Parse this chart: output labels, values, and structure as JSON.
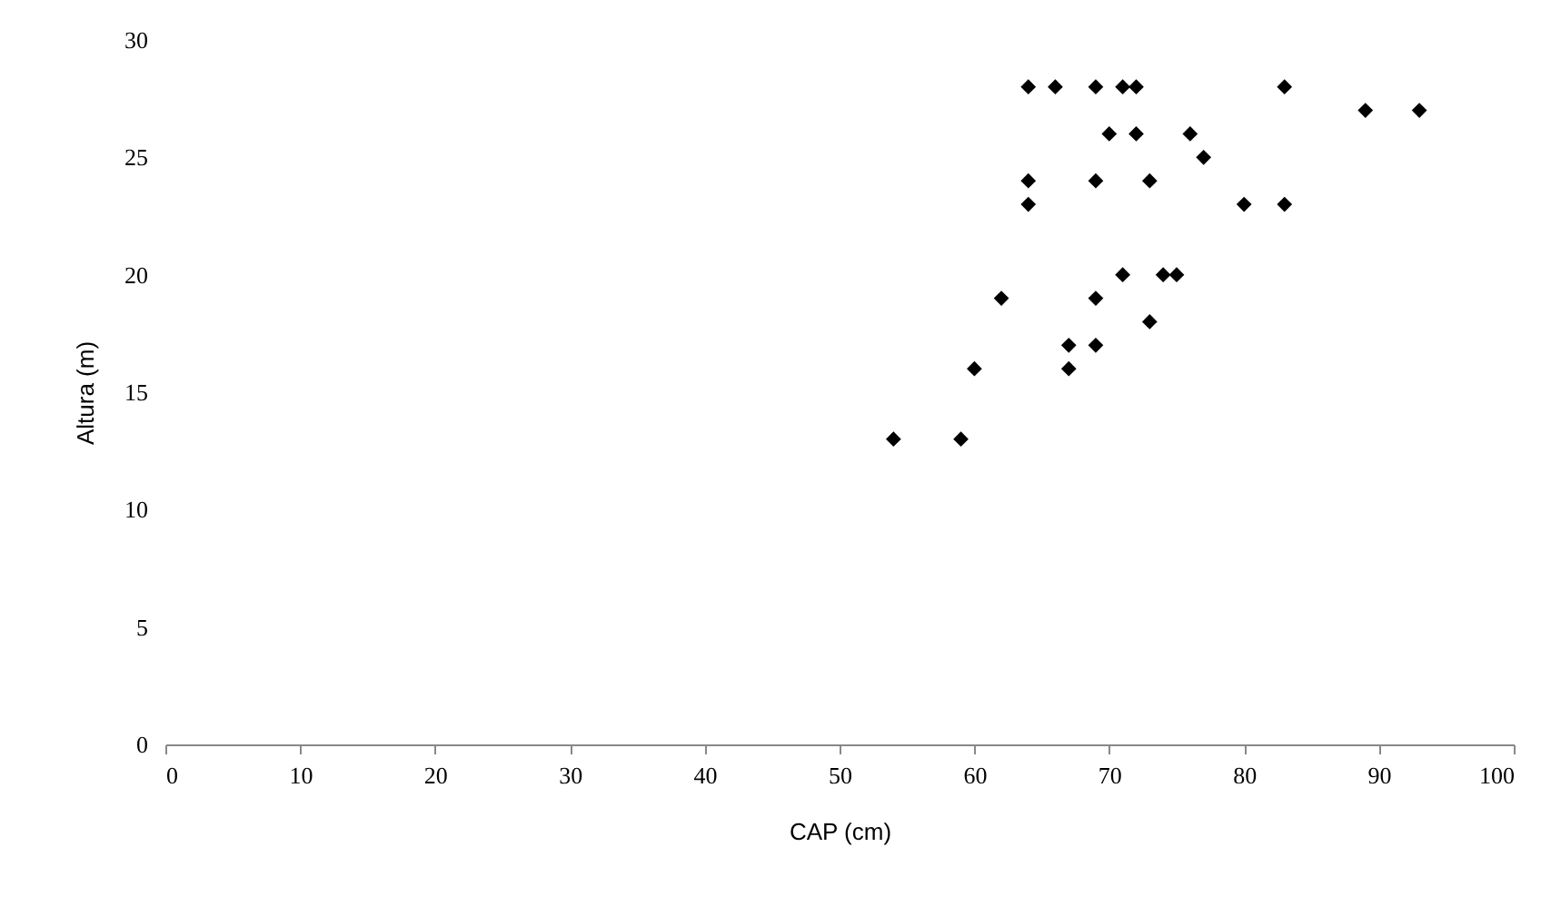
{
  "chart_data": {
    "type": "scatter",
    "xlabel": "CAP (cm)",
    "ylabel": "Altura (m)",
    "series": [
      {
        "color": "#000000",
        "x": [
          54,
          59,
          60,
          62,
          64,
          64,
          64,
          66,
          67,
          67,
          69,
          69,
          69,
          69,
          70,
          71,
          71,
          72,
          72,
          73,
          73,
          74,
          75,
          76,
          77,
          80,
          83,
          83,
          89,
          93
        ],
        "values": [
          13,
          13,
          16,
          19,
          28,
          24,
          23,
          28,
          17,
          16,
          28,
          24,
          19,
          17,
          26,
          28,
          20,
          28,
          26,
          24,
          18,
          20,
          20,
          26,
          25,
          23,
          28,
          23,
          27,
          27
        ]
      }
    ],
    "xlim": [
      0,
      100
    ],
    "xticks": [
      0,
      10,
      20,
      30,
      40,
      50,
      60,
      70,
      80,
      90,
      100
    ],
    "ylim": [
      0,
      30
    ],
    "yticks": [
      0,
      5,
      10,
      15,
      20,
      25,
      30
    ],
    "marker": "diamond",
    "grid": false,
    "legend": false
  }
}
